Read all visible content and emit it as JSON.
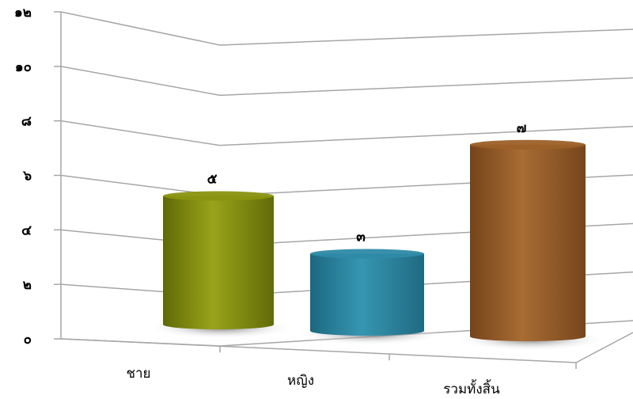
{
  "chart_data": {
    "type": "bar",
    "style": "3d-cylinder",
    "categories": [
      "ชาย",
      "หญิง",
      "รวมทั้งสิ้น"
    ],
    "values": [
      5,
      3,
      7
    ],
    "data_labels": [
      "๕",
      "๓",
      "๗"
    ],
    "y_tick_values": [
      0,
      2,
      4,
      6,
      8,
      10,
      12
    ],
    "y_tick_labels": [
      "๐",
      "๒",
      "๔",
      "๖",
      "๘",
      "๑๐",
      "๑๒"
    ],
    "ylim": [
      0,
      12
    ],
    "title": "",
    "xlabel": "",
    "ylabel": "",
    "grid": true,
    "legend": "none",
    "colors": [
      "#8a9410",
      "#2e8aa6",
      "#9c6028"
    ]
  }
}
